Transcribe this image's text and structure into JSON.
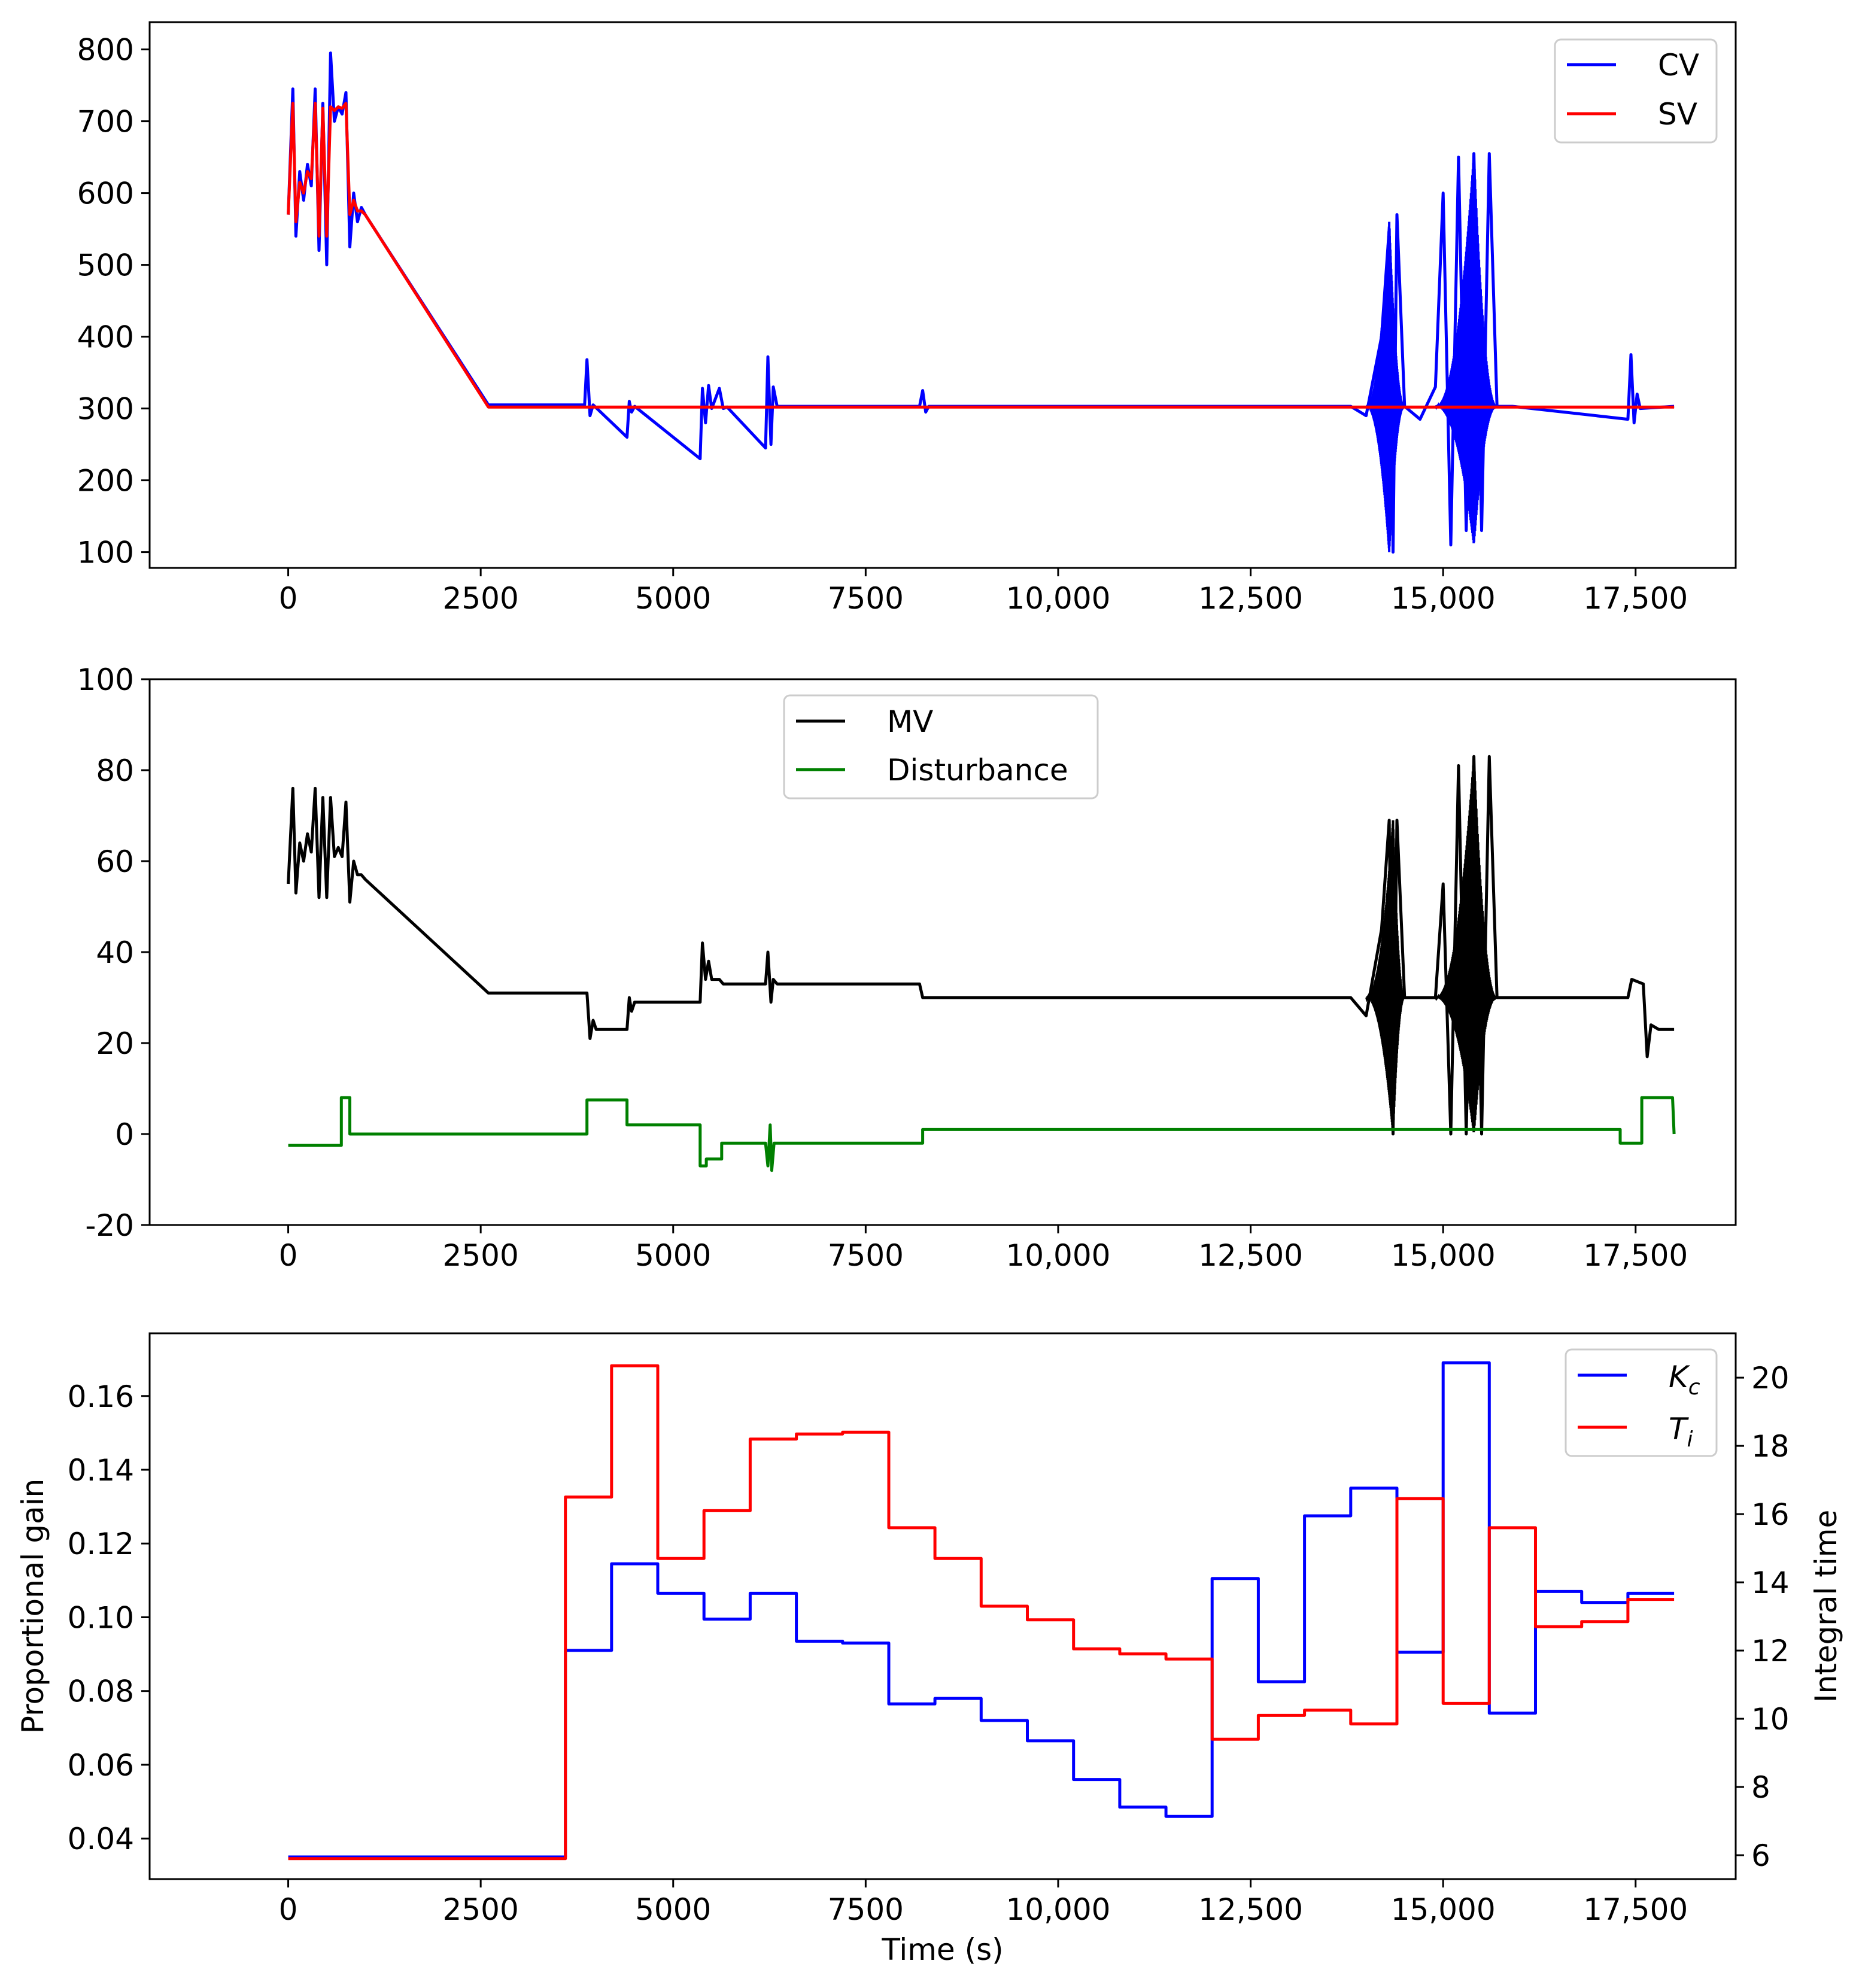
{
  "colors": {
    "cv": "#0000ff",
    "sv": "#ff0000",
    "mv": "#000000",
    "disturbance": "#008000",
    "kc": "#0000ff",
    "ti": "#ff0000"
  },
  "chart_data": [
    {
      "id": "panel1",
      "type": "line",
      "title": "",
      "xlabel": "",
      "ylabel": "",
      "xlim": [
        -1800,
        18800
      ],
      "ylim": [
        78,
        838
      ],
      "xticks": [
        0,
        2500,
        5000,
        7500,
        10000,
        12500,
        15000,
        17500
      ],
      "xtick_labels": [
        "0",
        "2500",
        "5000",
        "7500",
        "10,000",
        "12,500",
        "15,000",
        "17,500"
      ],
      "yticks": [
        100,
        200,
        300,
        400,
        500,
        600,
        700,
        800
      ],
      "ytick_labels": [
        "100",
        "200",
        "300",
        "400",
        "500",
        "600",
        "700",
        "800"
      ],
      "legend_position": "top-right",
      "series": [
        {
          "name": "CV",
          "color_key": "cv",
          "x": [
            0,
            60,
            100,
            150,
            200,
            250,
            300,
            350,
            400,
            450,
            500,
            550,
            600,
            650,
            700,
            750,
            800,
            850,
            900,
            950,
            1000,
            2600,
            3850,
            3880,
            3920,
            3960,
            4400,
            4430,
            4460,
            4500,
            5350,
            5380,
            5420,
            5460,
            5500,
            5600,
            5650,
            5700,
            6200,
            6230,
            6270,
            6300,
            6350,
            8200,
            8240,
            8280,
            8320,
            13800,
            14000,
            14200,
            14300,
            14350,
            14400,
            14500,
            14700,
            14900,
            15000,
            15100,
            15200,
            15300,
            15400,
            15500,
            15600,
            15700,
            15900,
            17400,
            17440,
            17480,
            17520,
            17560,
            18000
          ],
          "y": [
            570,
            745,
            540,
            630,
            590,
            640,
            610,
            745,
            520,
            725,
            500,
            795,
            700,
            720,
            710,
            740,
            525,
            600,
            560,
            580,
            570,
            305,
            305,
            368,
            290,
            305,
            260,
            310,
            295,
            303,
            230,
            328,
            280,
            332,
            300,
            328,
            300,
            302,
            245,
            372,
            250,
            330,
            303,
            303,
            325,
            295,
            303,
            303,
            290,
            400,
            550,
            100,
            570,
            303,
            285,
            330,
            600,
            110,
            650,
            130,
            655,
            130,
            655,
            303,
            303,
            285,
            375,
            280,
            320,
            300,
            303
          ]
        },
        {
          "name": "SV",
          "color_key": "sv",
          "x": [
            0,
            60,
            100,
            150,
            200,
            250,
            300,
            350,
            400,
            450,
            500,
            550,
            600,
            650,
            700,
            750,
            800,
            850,
            900,
            950,
            1000,
            2600,
            18000
          ],
          "y": [
            570,
            725,
            560,
            615,
            600,
            630,
            620,
            725,
            540,
            718,
            540,
            720,
            715,
            720,
            718,
            725,
            570,
            590,
            575,
            575,
            570,
            302,
            302
          ]
        }
      ],
      "envelopes": [
        {
          "series": "CV",
          "x_range": [
            14000,
            14500
          ],
          "upper_peak": 560,
          "lower_peak": 100,
          "peak_x": 14300
        },
        {
          "series": "CV",
          "x_range": [
            14900,
            15700
          ],
          "upper_peak": 655,
          "lower_peak": 110,
          "peak_x": 15400
        }
      ]
    },
    {
      "id": "panel2",
      "type": "line",
      "title": "",
      "xlabel": "",
      "ylabel": "",
      "xlim": [
        -1800,
        18800
      ],
      "ylim": [
        -20,
        100
      ],
      "xticks": [
        0,
        2500,
        5000,
        7500,
        10000,
        12500,
        15000,
        17500
      ],
      "xtick_labels": [
        "0",
        "2500",
        "5000",
        "7500",
        "10,000",
        "12,500",
        "15,000",
        "17,500"
      ],
      "yticks": [
        -20,
        0,
        20,
        40,
        60,
        80,
        100
      ],
      "ytick_labels": [
        "-20",
        "0",
        "20",
        "40",
        "60",
        "80",
        "100"
      ],
      "legend_position": "top-center",
      "series": [
        {
          "name": "MV",
          "color_key": "mv",
          "x": [
            0,
            60,
            100,
            150,
            200,
            250,
            300,
            350,
            400,
            450,
            500,
            550,
            600,
            650,
            700,
            750,
            800,
            850,
            900,
            950,
            1000,
            2600,
            3850,
            3880,
            3920,
            3960,
            4000,
            4400,
            4430,
            4460,
            4500,
            5350,
            5380,
            5420,
            5460,
            5500,
            5600,
            5650,
            5700,
            6200,
            6230,
            6270,
            6300,
            6350,
            8200,
            8240,
            8300,
            11900,
            12000,
            12300,
            13800,
            14000,
            14200,
            14300,
            14350,
            14400,
            14500,
            14700,
            14900,
            15000,
            15100,
            15200,
            15300,
            15400,
            15500,
            15600,
            15700,
            15900,
            17400,
            17450,
            17600,
            17650,
            17700,
            17800,
            18000
          ],
          "y": [
            55,
            76,
            53,
            64,
            60,
            66,
            62,
            76,
            52,
            74,
            52,
            74,
            61,
            63,
            61,
            73,
            51,
            60,
            57,
            57,
            56,
            31,
            31,
            31,
            21,
            25,
            23,
            23,
            30,
            27,
            29,
            29,
            42,
            34,
            38,
            34,
            34,
            33,
            33,
            33,
            40,
            29,
            34,
            33,
            33,
            30,
            30,
            30,
            30,
            30,
            30,
            26,
            45,
            69,
            0,
            69,
            30,
            30,
            30,
            55,
            0,
            81,
            0,
            83,
            0,
            83,
            30,
            30,
            30,
            34,
            33,
            17,
            24,
            23,
            23
          ]
        },
        {
          "name": "Disturbance",
          "color_key": "disturbance",
          "x": [
            0,
            690,
            690,
            800,
            800,
            3880,
            3880,
            4400,
            4400,
            5350,
            5350,
            5430,
            5430,
            5630,
            5630,
            6200,
            6230,
            6260,
            6280,
            6310,
            6340,
            8240,
            8240,
            17300,
            17300,
            17580,
            17580,
            17980,
            18000
          ],
          "y": [
            -2.5,
            -2.5,
            8,
            8,
            0,
            0,
            7.5,
            7.5,
            2,
            2,
            -7,
            -7,
            -5.5,
            -5.5,
            -2,
            -2,
            -7,
            2,
            -8,
            -2,
            -2,
            -2,
            1,
            1,
            -2,
            -2,
            8,
            8,
            0
          ]
        }
      ],
      "envelopes": [
        {
          "series": "MV",
          "x_range": [
            14000,
            14500
          ],
          "upper_peak": 69,
          "lower_peak": 0,
          "peak_x": 14350
        },
        {
          "series": "MV",
          "x_range": [
            14900,
            15700
          ],
          "upper_peak": 83,
          "lower_peak": 0,
          "peak_x": 15400
        }
      ]
    },
    {
      "id": "panel3",
      "type": "line",
      "title": "",
      "xlabel": "Time (s)",
      "ylabel": "Proportional gain",
      "ylabel_right": "Integral time",
      "xlim": [
        -1800,
        18800
      ],
      "ylim": [
        0.029,
        0.177
      ],
      "ylim_right": [
        5.3,
        21.3
      ],
      "xticks": [
        0,
        2500,
        5000,
        7500,
        10000,
        12500,
        15000,
        17500
      ],
      "xtick_labels": [
        "0",
        "2500",
        "5000",
        "7500",
        "10,000",
        "12,500",
        "15,000",
        "17,500"
      ],
      "yticks": [
        0.04,
        0.06,
        0.08,
        0.1,
        0.12,
        0.14,
        0.16
      ],
      "ytick_labels": [
        "0.04",
        "0.06",
        "0.08",
        "0.10",
        "0.12",
        "0.14",
        "0.16"
      ],
      "yticks_right": [
        6,
        8,
        10,
        12,
        14,
        16,
        18,
        20
      ],
      "ytick_labels_right": [
        "6",
        "8",
        "10",
        "12",
        "14",
        "16",
        "18",
        "20"
      ],
      "legend_position": "top-right",
      "series": [
        {
          "name": "Kc",
          "legend_main": "K",
          "legend_sub": "c",
          "color_key": "kc",
          "axis": "left",
          "step": true,
          "x": [
            0,
            3600,
            4200,
            4800,
            5400,
            6000,
            6600,
            7200,
            7800,
            8400,
            9000,
            9600,
            10200,
            10800,
            11400,
            12000,
            12600,
            13200,
            13800,
            14400,
            15000,
            15600,
            16200,
            16800,
            17400,
            18000
          ],
          "y": [
            0.035,
            0.091,
            0.1145,
            0.1065,
            0.0995,
            0.1065,
            0.0935,
            0.093,
            0.0765,
            0.078,
            0.072,
            0.0665,
            0.056,
            0.0485,
            0.046,
            0.1105,
            0.0825,
            0.1275,
            0.135,
            0.0905,
            0.169,
            0.074,
            0.107,
            0.104,
            0.1065,
            0.1065
          ]
        },
        {
          "name": "Ti",
          "legend_main": "T",
          "legend_sub": "i",
          "color_key": "ti",
          "axis": "right",
          "step": true,
          "x": [
            0,
            3600,
            4200,
            4800,
            5400,
            6000,
            6600,
            7200,
            7800,
            8400,
            9000,
            9600,
            10200,
            10800,
            11400,
            12000,
            12600,
            13200,
            13800,
            14400,
            15000,
            15600,
            16200,
            16800,
            17400,
            18000
          ],
          "y": [
            5.9,
            16.5,
            20.35,
            14.7,
            16.1,
            18.2,
            18.35,
            18.4,
            15.6,
            14.7,
            13.3,
            12.9,
            12.05,
            11.9,
            11.75,
            9.4,
            10.1,
            10.25,
            9.85,
            16.45,
            10.45,
            15.6,
            12.7,
            12.85,
            13.5,
            13.5
          ]
        }
      ]
    }
  ]
}
